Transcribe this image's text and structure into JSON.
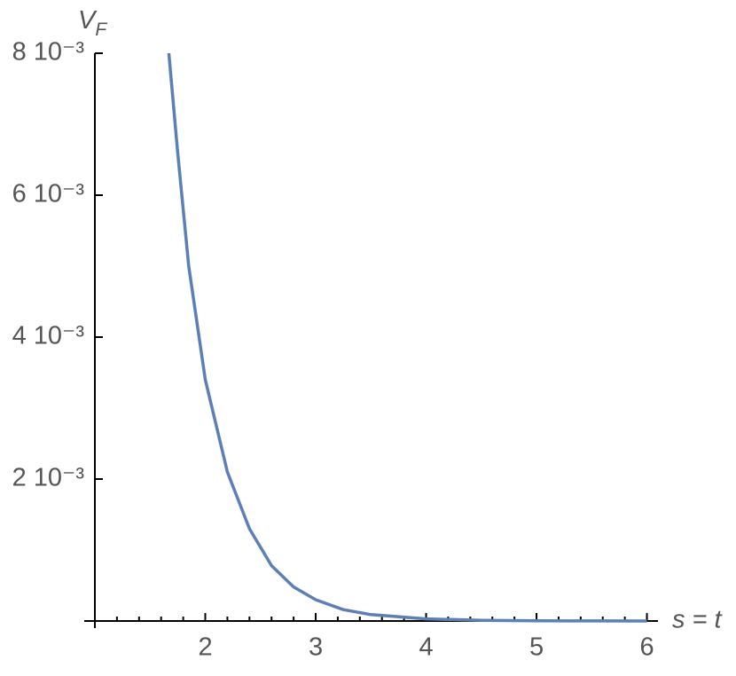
{
  "chart_data": {
    "type": "line",
    "x_label": "s = t",
    "y_label": {
      "main": "V",
      "sub": "F"
    },
    "x": [
      1.67,
      1.75,
      1.85,
      2,
      2.2,
      2.4,
      2.6,
      2.8,
      3,
      3.25,
      3.5,
      4,
      4.5,
      5,
      5.5,
      6
    ],
    "series": [
      {
        "color": "#5b7fb6",
        "values": [
          0.008,
          0.0066,
          0.005,
          0.0034,
          0.0021,
          0.0013,
          0.00078,
          0.00048,
          0.0003,
          0.00016,
          9e-05,
          3e-05,
          1e-05,
          3e-06,
          1e-06,
          0
        ]
      }
    ],
    "xlim": [
      1,
      6.1
    ],
    "ylim": [
      0,
      0.008
    ],
    "xticks": [
      2,
      3,
      4,
      5,
      6
    ],
    "xminorticks": [
      1.2,
      1.4,
      1.6,
      1.8,
      2.2,
      2.4,
      2.6,
      2.8,
      3.2,
      3.4,
      3.6,
      3.8,
      4.2,
      4.4,
      4.6,
      4.8,
      5.2,
      5.4,
      5.6,
      5.8,
      6.0
    ],
    "yticks": [
      {
        "value": 0.002,
        "label": "2 10⁻³"
      },
      {
        "value": 0.004,
        "label": "4 10⁻³"
      },
      {
        "value": 0.006,
        "label": "6 10⁻³"
      },
      {
        "value": 0.008,
        "label": "8 10⁻³"
      }
    ],
    "grid": false
  }
}
